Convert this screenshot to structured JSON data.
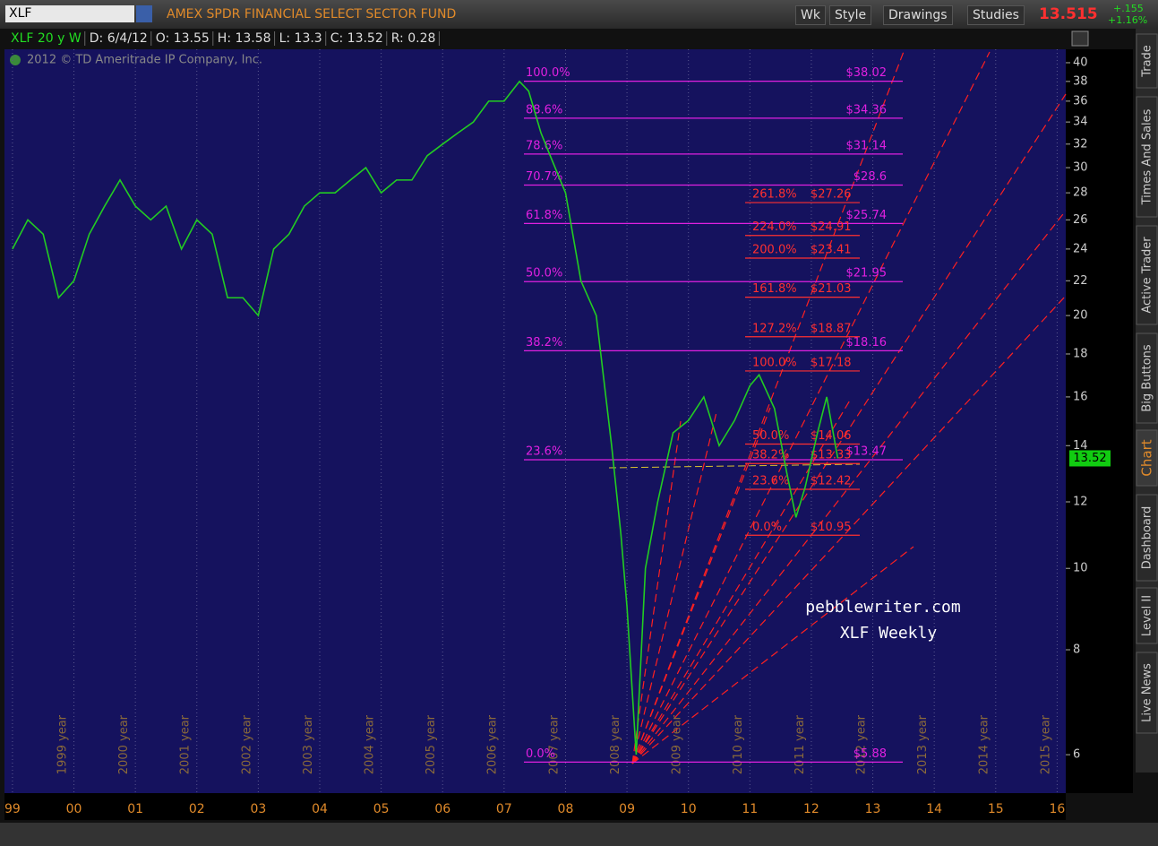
{
  "toolbar": {
    "symbol": "XLF",
    "description": "AMEX SPDR FINANCIAL SELECT SECTOR FUND",
    "buttons": [
      "Wk",
      "Style",
      "Drawings",
      "Studies"
    ],
    "last": "13.515",
    "change": "+.155",
    "change_pct": "+1.16%"
  },
  "info_bar": [
    "XLF 20 y W",
    "D: 6/4/12",
    "O: 13.55",
    "H: 13.58",
    "L: 13.3",
    "C: 13.52",
    "R: 0.28"
  ],
  "copyright": "2012 © TD Ameritrade IP Company, Inc.",
  "side_tabs": [
    "Trade",
    "Times And Sales",
    "Active Trader",
    "Big Buttons",
    "Chart",
    "Dashboard",
    "Level II",
    "Live News"
  ],
  "chart_data": {
    "type": "line",
    "color": "#22cc22",
    "log_scale": true,
    "grid": true,
    "x": [
      1999.0,
      1999.25,
      1999.5,
      1999.75,
      2000.0,
      2000.25,
      2000.5,
      2000.75,
      2001.0,
      2001.25,
      2001.5,
      2001.75,
      2002.0,
      2002.25,
      2002.5,
      2002.75,
      2003.0,
      2003.25,
      2003.5,
      2003.75,
      2004.0,
      2004.25,
      2004.5,
      2004.75,
      2005.0,
      2005.25,
      2005.5,
      2005.75,
      2006.0,
      2006.25,
      2006.5,
      2006.75,
      2007.0,
      2007.25,
      2007.4,
      2007.6,
      2007.75,
      2008.0,
      2008.25,
      2008.5,
      2008.75,
      2008.9,
      2009.0,
      2009.15,
      2009.3,
      2009.5,
      2009.75,
      2010.0,
      2010.25,
      2010.5,
      2010.75,
      2011.0,
      2011.15,
      2011.4,
      2011.6,
      2011.75,
      2011.9,
      2012.1,
      2012.25,
      2012.43
    ],
    "values": [
      24,
      26,
      25,
      21,
      22,
      25,
      27,
      29,
      27,
      26,
      27,
      24,
      26,
      25,
      21,
      21,
      20,
      24,
      25,
      27,
      28,
      28,
      29,
      30,
      28,
      29,
      29,
      31,
      32,
      33,
      34,
      36,
      36,
      38,
      37,
      33,
      31,
      28,
      22,
      20,
      14,
      11,
      9,
      6,
      10,
      12,
      14.5,
      15,
      16,
      14,
      15,
      16.5,
      17,
      15.5,
      13,
      11.5,
      12.5,
      14.5,
      16,
      13.52
    ],
    "xlim": [
      1998.87,
      2016.14
    ],
    "xticks": [
      {
        "value": 1999,
        "label": "99"
      },
      {
        "value": 2000,
        "label": "00"
      },
      {
        "value": 2001,
        "label": "01"
      },
      {
        "value": 2002,
        "label": "02"
      },
      {
        "value": 2003,
        "label": "03"
      },
      {
        "value": 2004,
        "label": "04"
      },
      {
        "value": 2005,
        "label": "05"
      },
      {
        "value": 2006,
        "label": "06"
      },
      {
        "value": 2007,
        "label": "07"
      },
      {
        "value": 2008,
        "label": "08"
      },
      {
        "value": 2009,
        "label": "09"
      },
      {
        "value": 2010,
        "label": "10"
      },
      {
        "value": 2011,
        "label": "11"
      },
      {
        "value": 2012,
        "label": "12"
      },
      {
        "value": 2013,
        "label": "13"
      },
      {
        "value": 2014,
        "label": "14"
      },
      {
        "value": 2015,
        "label": "15"
      },
      {
        "value": 2016,
        "label": "16"
      }
    ],
    "year_labels": [
      "1999 year",
      "2000 year",
      "2001 year",
      "2002 year",
      "2003 year",
      "2004 year",
      "2005 year",
      "2006 year",
      "2007 year",
      "2008 year",
      "2009 year",
      "2010 year",
      "2011 year",
      "2012 year",
      "2013 year",
      "2014 year",
      "2015 year"
    ],
    "ylim": [
      5.4,
      41.5
    ],
    "yticks": [
      6,
      8,
      10,
      12,
      14,
      16,
      18,
      20,
      22,
      24,
      26,
      28,
      30,
      32,
      34,
      36,
      38,
      40
    ],
    "last_price": 13.52,
    "annotations": [
      "pebblewriter.com",
      "XLF Weekly"
    ],
    "fib_retracement": {
      "color": "#e020e0",
      "levels": [
        {
          "percent": "100.0%",
          "value": 38.02,
          "value_label": "$38.02"
        },
        {
          "percent": "88.6%",
          "value": 34.36,
          "value_label": "$34.36"
        },
        {
          "percent": "78.6%",
          "value": 31.14,
          "value_label": "$31.14"
        },
        {
          "percent": "70.7%",
          "value": 28.6,
          "value_label": "$28.6"
        },
        {
          "percent": "61.8%",
          "value": 25.74,
          "value_label": "$25.74"
        },
        {
          "percent": "50.0%",
          "value": 21.95,
          "value_label": "$21.95"
        },
        {
          "percent": "38.2%",
          "value": 18.16,
          "value_label": "$18.16"
        },
        {
          "percent": "23.6%",
          "value": 13.47,
          "value_label": "$13.47"
        },
        {
          "percent": "0.0%",
          "value": 5.88,
          "value_label": "$5.88"
        }
      ]
    },
    "fib_extension": {
      "color": "#ff3030",
      "levels": [
        {
          "percent": "261.8%",
          "value": 27.26,
          "value_label": "$27.26"
        },
        {
          "percent": "224.0%",
          "value": 24.91,
          "value_label": "$24.91"
        },
        {
          "percent": "200.0%",
          "value": 23.41,
          "value_label": "$23.41"
        },
        {
          "percent": "161.8%",
          "value": 21.03,
          "value_label": "$21.03"
        },
        {
          "percent": "127.2%",
          "value": 18.87,
          "value_label": "$18.87"
        },
        {
          "percent": "100.0%",
          "value": 17.18,
          "value_label": "$17.18"
        },
        {
          "percent": "50.0%",
          "value": 14.06,
          "value_label": "$14.06"
        },
        {
          "percent": "38.2%",
          "value": 13.33,
          "value_label": "$13.33"
        },
        {
          "percent": "23.6%",
          "value": 12.42,
          "value_label": "$12.42"
        },
        {
          "percent": "0.0%",
          "value": 10.95,
          "value_label": "$10.95"
        }
      ]
    }
  }
}
